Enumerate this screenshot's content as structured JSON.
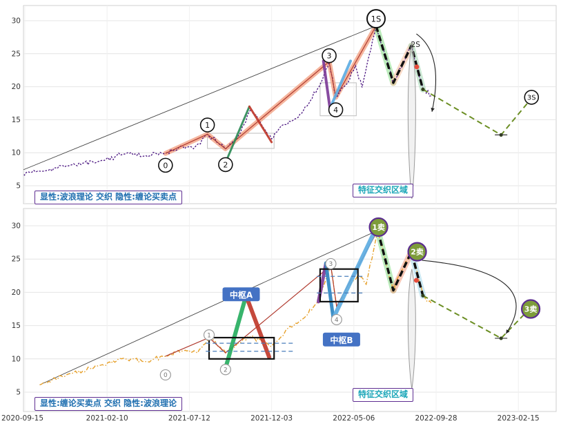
{
  "chart_data": {
    "type": "line",
    "title": "",
    "x_ticks": [
      "2020-09-15",
      "2021-02-10",
      "2021-07-12",
      "2021-12-03",
      "2022-05-06",
      "2022-09-28",
      "2023-02-15"
    ],
    "y_ticks": [
      30,
      25,
      20,
      15,
      10,
      5
    ],
    "y_range": [
      2,
      31.5
    ],
    "grid": true,
    "legend": "none",
    "marker_styles": {
      "wave": {
        "fill": "#ffffff",
        "stroke": "#111111",
        "text": "#111111",
        "r": 10,
        "fs": 11,
        "sw": 1.6,
        "bold": false
      },
      "wave_big": {
        "fill": "#ffffff",
        "stroke": "#111111",
        "text": "#111111",
        "r": 13,
        "fs": 11.5,
        "sw": 2,
        "bold": false
      },
      "wave_small": {
        "fill": "#ffffff",
        "stroke": "#9a9a9a",
        "text": "#777777",
        "r": 7.5,
        "fs": 9,
        "sw": 1.2,
        "bold": false
      },
      "sell": {
        "fill": "#7d9c3a",
        "stroke": "#5b2c8f",
        "text": "#ffffff",
        "r": 13,
        "fs": 11,
        "sw": 2.2,
        "bold": true
      }
    },
    "panels": [
      {
        "id": "wave-explicit-panel",
        "annotation_left": "显性:波浪理论 交织 隐性:缠论买卖点",
        "annotation_right": "特征交织区域",
        "seed": 11,
        "noise_amp": 0.45,
        "price": {
          "color": "#4a1580",
          "dash": "2.5 2",
          "width": 1.3
        },
        "price_anchors": [
          [
            -0.14,
            6.8
          ],
          [
            0.2,
            7.2
          ],
          [
            0.55,
            8.1
          ],
          [
            0.9,
            8.7
          ],
          [
            1.25,
            10.0
          ],
          [
            1.45,
            9.5
          ],
          [
            1.71,
            9.9
          ],
          [
            1.9,
            11.0
          ],
          [
            2.05,
            10.6
          ],
          [
            2.22,
            12.8
          ],
          [
            2.35,
            11.5
          ],
          [
            2.44,
            10.6
          ],
          [
            2.58,
            12.2
          ],
          [
            2.75,
            16.6
          ],
          [
            2.9,
            13.8
          ],
          [
            3.0,
            12.1
          ],
          [
            3.15,
            14.3
          ],
          [
            3.3,
            15.2
          ],
          [
            3.45,
            17.4
          ],
          [
            3.6,
            20.6
          ],
          [
            3.7,
            23.8
          ],
          [
            3.78,
            18.4
          ],
          [
            3.9,
            20.2
          ],
          [
            4.02,
            23.2
          ],
          [
            4.1,
            19.9
          ],
          [
            4.27,
            29.2
          ],
          [
            4.38,
            24.8
          ],
          [
            4.48,
            20.6
          ],
          [
            4.6,
            23.5
          ],
          [
            4.7,
            26.2
          ],
          [
            4.78,
            22.5
          ],
          [
            4.84,
            19.7
          ],
          [
            4.94,
            18.6
          ]
        ],
        "trendlines": [
          {
            "pts": [
              [
                -0.14,
                6.8
              ],
              [
                4.27,
                29.2
              ]
            ],
            "color": "#444444",
            "w": 0.9
          }
        ],
        "impulse": {
          "pts": [
            [
              1.71,
              9.9
            ],
            [
              2.22,
              12.8
            ],
            [
              2.44,
              10.6
            ],
            [
              3.7,
              23.8
            ],
            [
              3.78,
              18.4
            ],
            [
              4.27,
              29.2
            ]
          ],
          "glow": "#f2a285",
          "glow_w": 7,
          "line": "#b03a2e"
        },
        "segments": [
          {
            "pts": [
              [
                2.45,
                8.8
              ],
              [
                2.73,
                17.0
              ]
            ],
            "color": "#2e8b57",
            "w": 3
          },
          {
            "pts": [
              [
                2.73,
                17.0
              ],
              [
                3.0,
                11.6
              ]
            ],
            "color": "#c0392b",
            "w": 3
          },
          {
            "pts": [
              [
                3.63,
                23.9
              ],
              [
                3.71,
                16.7
              ]
            ],
            "color": "#7d3c98",
            "w": 4
          },
          {
            "pts": [
              [
                3.71,
                16.7
              ],
              [
                3.96,
                23.9
              ]
            ],
            "color": "#5dade2",
            "w": 4
          }
        ],
        "zigzag": {
          "pts": [
            [
              4.27,
              29.2
            ],
            [
              4.48,
              20.6
            ],
            [
              4.7,
              26.2
            ],
            [
              4.84,
              19.6
            ]
          ],
          "color": "#111111",
          "dash": "9 5",
          "w": 3.5,
          "glows": [
            "#8fe08f",
            "#f5c2a0",
            "#a8d8b8"
          ],
          "glow_w": 9
        },
        "projection": {
          "pts": [
            [
              4.84,
              19.6
            ],
            [
              5.79,
              12.7
            ],
            [
              6.15,
              18.1
            ]
          ],
          "color": "#6b8e23",
          "dash": "8 5",
          "w": 2,
          "whisker_idx": 1
        },
        "boxes_gray": [
          [
            2.22,
            10.65,
            3.03,
            12.95
          ],
          [
            3.59,
            15.6,
            4.03,
            20.6
          ]
        ],
        "boxes_black": [],
        "dashed_levels": [],
        "funnel": {
          "t": 4.705,
          "p_top": 26.8,
          "p_bot": 3.0,
          "w": 9
        },
        "curve": {
          "from": [
            4.76,
            28.0
          ],
          "ctrl": [
            5.1,
            25.0
          ],
          "to": [
            4.95,
            16.2
          ]
        },
        "markers": [
          {
            "style": "wave",
            "label": "0",
            "t": 1.71,
            "p": 8.1
          },
          {
            "style": "wave",
            "label": "1",
            "t": 2.22,
            "p": 14.2
          },
          {
            "style": "wave",
            "label": "2",
            "t": 2.44,
            "p": 8.2
          },
          {
            "style": "wave",
            "label": "3",
            "t": 3.7,
            "p": 24.7
          },
          {
            "style": "wave",
            "label": "4",
            "t": 3.78,
            "p": 16.5
          },
          {
            "style": "wave_big",
            "label": "1S",
            "t": 4.27,
            "p": 30.3
          },
          {
            "style": "wave",
            "label": "3S",
            "t": 6.16,
            "p": 18.4,
            "fs": 10
          }
        ],
        "texts": [
          {
            "text": "2S",
            "t": 4.75,
            "p": 26.0,
            "fs": 10.5,
            "color": "#222222"
          }
        ],
        "dots": [
          {
            "t": 4.765,
            "p": 23.0,
            "r": 3.5,
            "color": "#e74c3c"
          }
        ],
        "zs_labels": []
      },
      {
        "id": "chan-explicit-panel",
        "annotation_left": "显性:缠论买卖点 交织 隐性:波浪理论",
        "annotation_right": "特征交织区域",
        "seed": 42,
        "noise_amp": 0.4,
        "price": {
          "color": "#e6a02a",
          "dash": "6 2.5 1.5 2.5",
          "width": 1.4
        },
        "price_anchors": [
          [
            0.18,
            6.1
          ],
          [
            0.55,
            7.8
          ],
          [
            0.9,
            9.0
          ],
          [
            1.2,
            10.1
          ],
          [
            1.45,
            9.6
          ],
          [
            1.71,
            10.4
          ],
          [
            1.95,
            11.3
          ],
          [
            2.1,
            10.9
          ],
          [
            2.24,
            13.2
          ],
          [
            2.38,
            11.7
          ],
          [
            2.44,
            10.9
          ],
          [
            2.6,
            12.4
          ],
          [
            2.75,
            13.4
          ],
          [
            2.9,
            12.6
          ],
          [
            3.0,
            11.9
          ],
          [
            3.2,
            14.6
          ],
          [
            3.4,
            16.2
          ],
          [
            3.55,
            18.4
          ],
          [
            3.72,
            24.0
          ],
          [
            3.79,
            17.9
          ],
          [
            3.92,
            20.3
          ],
          [
            4.05,
            22.6
          ],
          [
            4.15,
            21.2
          ],
          [
            4.29,
            29.3
          ],
          [
            4.38,
            24.9
          ],
          [
            4.48,
            20.3
          ],
          [
            4.6,
            23.7
          ],
          [
            4.7,
            26.1
          ],
          [
            4.78,
            22.4
          ],
          [
            4.84,
            19.6
          ],
          [
            4.94,
            18.4
          ]
        ],
        "trendlines": [
          {
            "pts": [
              [
                0.18,
                6.1
              ],
              [
                4.29,
                29.3
              ]
            ],
            "color": "#444444",
            "w": 0.9
          }
        ],
        "impulse": {
          "pts": [
            [
              1.71,
              10.4
            ],
            [
              2.24,
              13.2
            ],
            [
              2.44,
              10.9
            ],
            [
              3.72,
              24.0
            ],
            [
              3.79,
              17.9
            ],
            [
              4.29,
              29.3
            ]
          ],
          "glow": null,
          "glow_w": 0,
          "line": "#b03a2e"
        },
        "segments": [
          {
            "pts": [
              [
                2.44,
                8.6
              ],
              [
                2.69,
                19.5
              ]
            ],
            "color": "#27ae60",
            "w": 6
          },
          {
            "pts": [
              [
                2.69,
                19.5
              ],
              [
                2.97,
                10.3
              ]
            ],
            "color": "#c0392b",
            "w": 6
          },
          {
            "pts": [
              [
                3.57,
                18.6
              ],
              [
                3.66,
                24.3
              ]
            ],
            "color": "#7d3c98",
            "w": 5
          },
          {
            "pts": [
              [
                3.66,
                24.4
              ],
              [
                3.75,
                16.1
              ]
            ],
            "color": "#2e86c1",
            "w": 5
          },
          {
            "pts": [
              [
                3.75,
                16.1
              ],
              [
                4.25,
                29.1
              ]
            ],
            "color": "#5dade2",
            "w": 6
          }
        ],
        "zigzag": {
          "pts": [
            [
              4.29,
              29.3
            ],
            [
              4.48,
              20.3
            ],
            [
              4.7,
              26.1
            ],
            [
              4.84,
              19.5
            ]
          ],
          "color": "#111111",
          "dash": "9 5",
          "w": 3.5,
          "glows": [
            "#8fe08f",
            "#f2a285",
            "#a8d8ea"
          ],
          "glow_w": 9
        },
        "projection": {
          "pts": [
            [
              4.84,
              19.5
            ],
            [
              5.79,
              13.1
            ],
            [
              6.15,
              17.7
            ]
          ],
          "color": "#6b8e23",
          "dash": "8 5",
          "w": 2,
          "whisker_idx": 1
        },
        "boxes_gray": [],
        "boxes_black": [
          [
            2.24,
            10.0,
            3.03,
            13.2
          ],
          [
            3.59,
            18.6,
            4.05,
            23.5
          ]
        ],
        "dashed_levels": [
          [
            2.2,
            3.28,
            11.15
          ],
          [
            2.2,
            3.28,
            12.35
          ],
          [
            3.55,
            4.12,
            19.9
          ],
          [
            3.55,
            4.12,
            22.4
          ]
        ],
        "funnel": {
          "t": 4.705,
          "p_top": 23.5,
          "p_bot": 5.5,
          "w": 9
        },
        "curve": {
          "from": [
            4.83,
            24.8
          ],
          "ctrl": [
            6.35,
            23.0
          ],
          "to": [
            5.85,
            13.8
          ]
        },
        "markers": [
          {
            "style": "wave_small",
            "label": "0",
            "t": 1.71,
            "p": 7.6
          },
          {
            "style": "wave_small",
            "label": "1",
            "t": 2.24,
            "p": 13.6
          },
          {
            "style": "wave_small",
            "label": "2",
            "t": 2.44,
            "p": 8.4
          },
          {
            "style": "wave_small",
            "label": "3",
            "t": 3.72,
            "p": 24.3
          },
          {
            "style": "wave_small",
            "label": "4",
            "t": 3.79,
            "p": 15.9
          },
          {
            "style": "sell",
            "label": "1卖",
            "t": 4.3,
            "p": 29.8
          },
          {
            "style": "sell",
            "label": "2卖",
            "t": 4.77,
            "p": 26.1
          },
          {
            "style": "sell",
            "label": "3卖",
            "t": 6.15,
            "p": 17.5
          }
        ],
        "texts": [],
        "dots": [
          {
            "t": 4.76,
            "p": 21.8,
            "r": 3.5,
            "color": "#e74c3c"
          }
        ],
        "zs_labels": [
          {
            "text": "中枢A",
            "t": 2.63,
            "p": 19.6
          },
          {
            "text": "中枢B",
            "t": 3.85,
            "p": 12.8
          }
        ]
      }
    ]
  }
}
